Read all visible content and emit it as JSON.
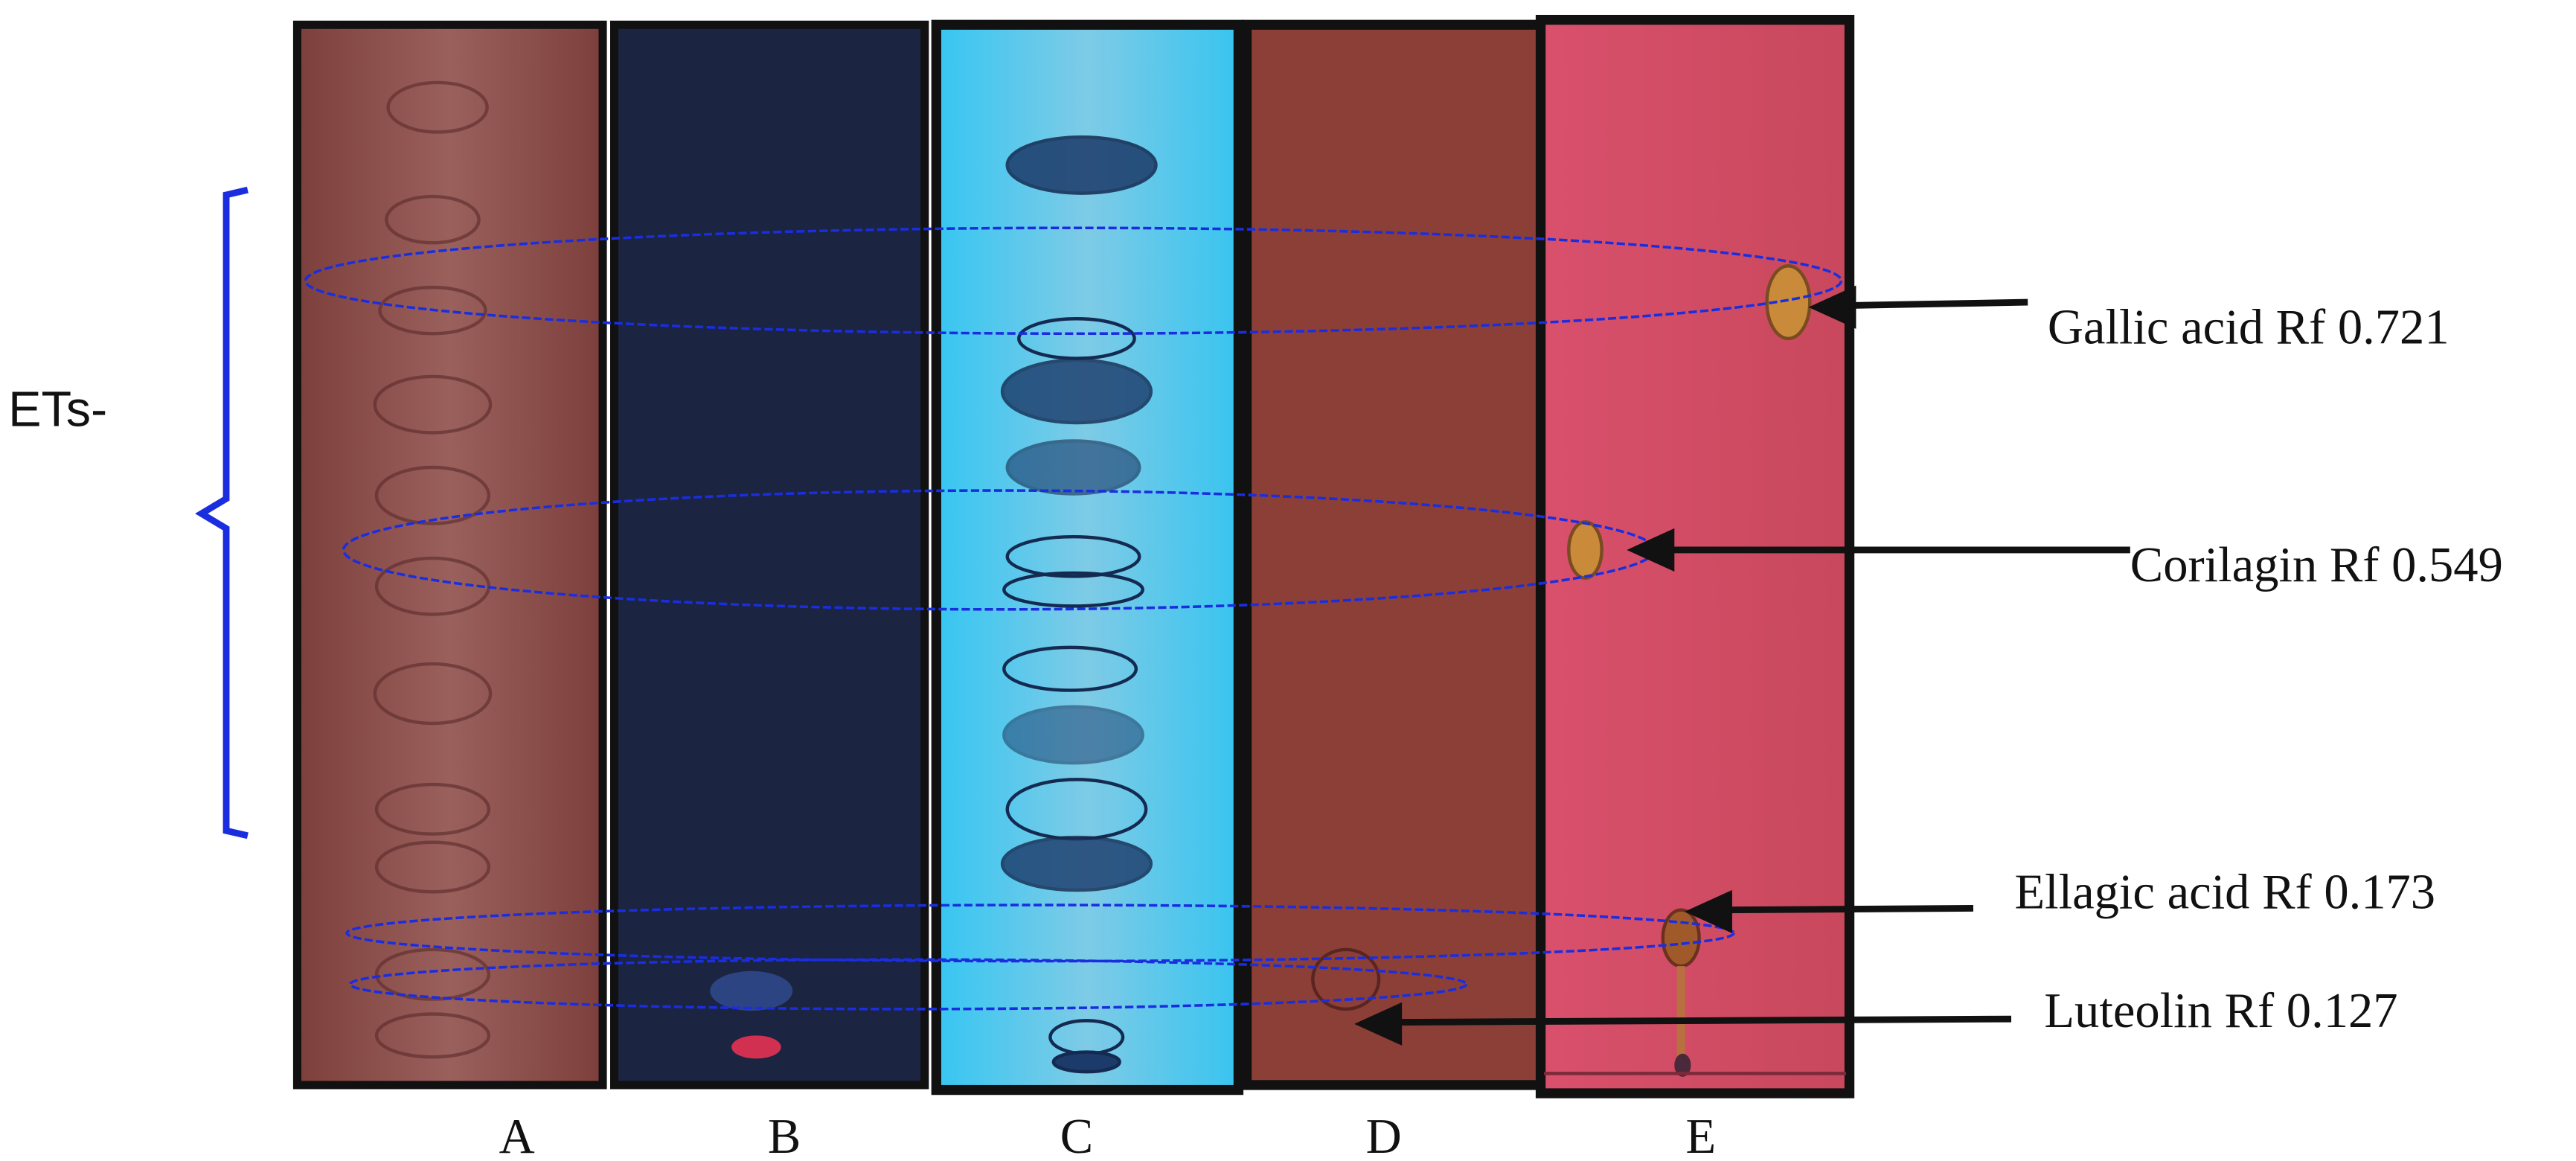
{
  "group_label": "ETs-",
  "lanes": [
    "A",
    "B",
    "C",
    "D",
    "E"
  ],
  "annotations": [
    "Gallic acid Rf 0.721",
    "Corilagin Rf 0.549",
    "Ellagic acid Rf 0.173",
    "Luteolin Rf 0.127"
  ]
}
